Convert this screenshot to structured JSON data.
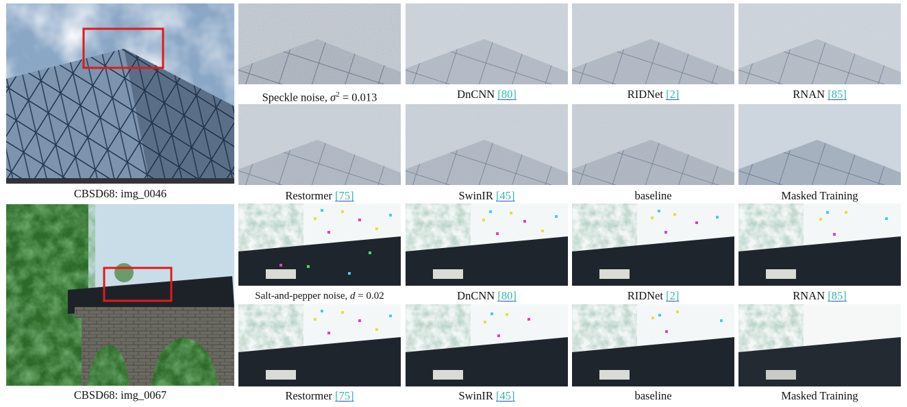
{
  "figure": {
    "group1": {
      "source_caption": "CBSD68: img_0046",
      "noisy_caption": {
        "label": "Speckle noise, ",
        "var": "σ",
        "sup": "2",
        "eq": " = 0.013"
      },
      "methods": [
        {
          "name": "DnCNN",
          "ref": "80"
        },
        {
          "name": "RIDNet",
          "ref": "2"
        },
        {
          "name": "RNAN",
          "ref": "85"
        },
        {
          "name": "Restormer",
          "ref": "75"
        },
        {
          "name": "SwinIR",
          "ref": "45"
        },
        {
          "name": "baseline",
          "ref": ""
        },
        {
          "name": "Masked Training",
          "ref": ""
        }
      ]
    },
    "group2": {
      "source_caption": "CBSD68: img_0067",
      "noisy_caption": {
        "label": "Salt-and-pepper noise, ",
        "var": "d",
        "eq": " = 0.02"
      },
      "methods": [
        {
          "name": "DnCNN",
          "ref": "80"
        },
        {
          "name": "RIDNet",
          "ref": "2"
        },
        {
          "name": "RNAN",
          "ref": "85"
        },
        {
          "name": "Restormer",
          "ref": "75"
        },
        {
          "name": "SwinIR",
          "ref": "45"
        },
        {
          "name": "baseline",
          "ref": ""
        },
        {
          "name": "Masked Training",
          "ref": ""
        }
      ]
    },
    "colors": {
      "highlight_box": "#e01a1a",
      "ref_text": "#2fb8b0",
      "ref_underline": "#2f44c8"
    }
  }
}
